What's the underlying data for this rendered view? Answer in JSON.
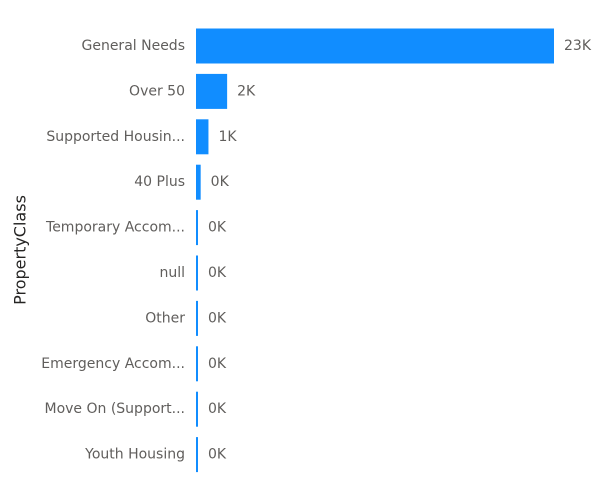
{
  "chart_data": {
    "type": "bar",
    "orientation": "horizontal",
    "ylabel": "PropertyClass",
    "xlabel": "",
    "categories": [
      "General Needs",
      "Over 50",
      "Supported Housin...",
      "40 Plus",
      "Temporary Accom...",
      "null",
      "Other",
      "Emergency Accom...",
      "Move On (Support...",
      "Youth Housing"
    ],
    "values": [
      23000,
      2000,
      800,
      300,
      100,
      80,
      80,
      80,
      80,
      80
    ],
    "data_labels": [
      "23K",
      "2K",
      "1K",
      "0K",
      "0K",
      "0K",
      "0K",
      "0K",
      "0K",
      "0K"
    ],
    "xlim": [
      0,
      23000
    ],
    "bar_color": "#118dff",
    "grid": false
  }
}
